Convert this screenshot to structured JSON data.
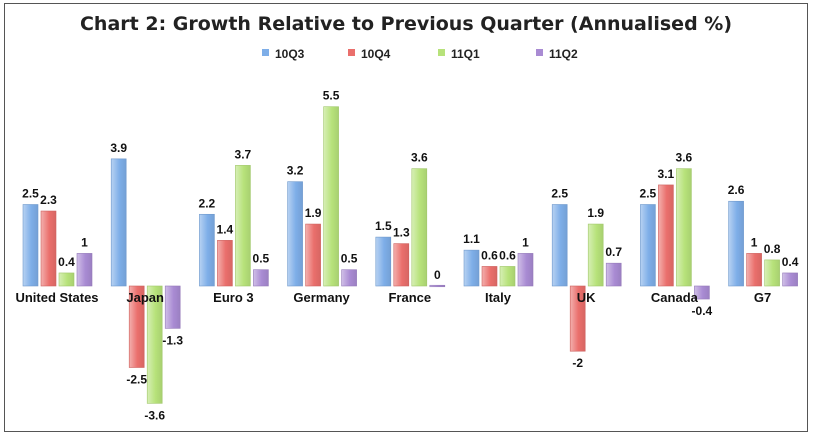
{
  "chart_data": {
    "type": "bar",
    "title": "Chart 2: Growth Relative to Previous Quarter (Annualised %)",
    "xlabel": "",
    "ylabel": "",
    "ylim": [
      -4,
      6
    ],
    "grid": false,
    "legend_position": "top",
    "categories": [
      "United States",
      "Japan",
      "Euro 3",
      "Germany",
      "France",
      "Italy",
      "UK",
      "Canada",
      "G7"
    ],
    "series": [
      {
        "name": "10Q3",
        "color": "#7eaee8",
        "values": [
          2.5,
          3.9,
          2.2,
          3.2,
          1.5,
          1.1,
          2.5,
          2.5,
          2.6
        ]
      },
      {
        "name": "10Q4",
        "color": "#ea6f6c",
        "values": [
          2.3,
          -2.5,
          1.4,
          1.9,
          1.3,
          0.6,
          -2,
          3.1,
          1
        ]
      },
      {
        "name": "11Q1",
        "color": "#b7e27a",
        "values": [
          0.4,
          -3.6,
          3.7,
          5.5,
          3.6,
          0.6,
          1.9,
          3.6,
          0.8
        ]
      },
      {
        "name": "11Q2",
        "color": "#a98bd3",
        "values": [
          1,
          -1.3,
          0.5,
          0.5,
          0,
          1,
          0.7,
          -0.4,
          0.4
        ]
      }
    ]
  }
}
